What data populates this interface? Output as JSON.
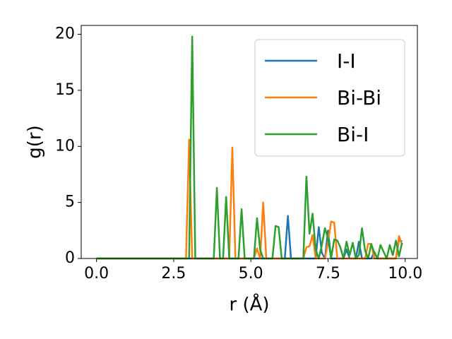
{
  "chart_data": {
    "type": "line",
    "x_label": "r (Å)",
    "y_label": "g(r)",
    "x": [
      0.0,
      0.1,
      0.2,
      0.3,
      0.4,
      0.5,
      0.6,
      0.7,
      0.8,
      0.9,
      1.0,
      1.1,
      1.2,
      1.3,
      1.4,
      1.5,
      1.6,
      1.7,
      1.8,
      1.9,
      2.0,
      2.1,
      2.2,
      2.3,
      2.4,
      2.5,
      2.6,
      2.7,
      2.8,
      2.9,
      3.0,
      3.1,
      3.2,
      3.3,
      3.4,
      3.5,
      3.6,
      3.7,
      3.8,
      3.9,
      4.0,
      4.1,
      4.2,
      4.3,
      4.4,
      4.5,
      4.6,
      4.7,
      4.8,
      4.9,
      5.0,
      5.1,
      5.2,
      5.3,
      5.4,
      5.5,
      5.6,
      5.7,
      5.8,
      5.9,
      6.0,
      6.1,
      6.2,
      6.3,
      6.4,
      6.5,
      6.6,
      6.7,
      6.8,
      6.9,
      7.0,
      7.1,
      7.2,
      7.3,
      7.4,
      7.5,
      7.6,
      7.7,
      7.8,
      7.9,
      8.0,
      8.1,
      8.2,
      8.3,
      8.4,
      8.5,
      8.6,
      8.7,
      8.8,
      8.9,
      9.0,
      9.1,
      9.2,
      9.3,
      9.4,
      9.5,
      9.6,
      9.7,
      9.8,
      9.9
    ],
    "series": [
      {
        "name": "I-I",
        "color": "#1f77b4",
        "values": [
          0,
          0,
          0,
          0,
          0,
          0,
          0,
          0,
          0,
          0,
          0,
          0,
          0,
          0,
          0,
          0,
          0,
          0,
          0,
          0,
          0,
          0,
          0,
          0,
          0,
          0,
          0,
          0,
          0,
          0,
          0,
          0,
          0,
          0,
          0,
          0,
          0,
          0,
          0,
          0,
          0,
          0,
          0,
          0,
          0,
          0,
          0,
          0,
          0,
          0,
          0,
          0,
          0,
          0,
          0,
          0,
          0,
          0,
          0,
          0,
          0,
          0,
          3.8,
          0,
          0,
          0,
          0,
          0,
          0,
          0,
          0,
          0,
          2.8,
          0.5,
          0,
          2.5,
          0,
          0,
          0,
          0,
          0,
          0.8,
          0,
          0,
          0,
          1.5,
          0,
          0,
          0,
          0,
          0.6,
          0,
          0,
          0,
          0,
          0,
          0,
          0,
          1.7,
          1.5
        ]
      },
      {
        "name": "Bi-Bi",
        "color": "#ff7f0e",
        "values": [
          0,
          0,
          0,
          0,
          0,
          0,
          0,
          0,
          0,
          0,
          0,
          0,
          0,
          0,
          0,
          0,
          0,
          0,
          0,
          0,
          0,
          0,
          0,
          0,
          0,
          0,
          0,
          0,
          0,
          0,
          10.6,
          0,
          0,
          0,
          0,
          0,
          0,
          0,
          0,
          0,
          0,
          0,
          0,
          0,
          9.9,
          0,
          0,
          0,
          0,
          0,
          0,
          0,
          0.9,
          0,
          5.0,
          0,
          0,
          0,
          0,
          0,
          0,
          0,
          0,
          0,
          0,
          0,
          0,
          0,
          1.0,
          1.1,
          2.1,
          0,
          0,
          0,
          0,
          1.5,
          3.3,
          3.2,
          0,
          0,
          0,
          0,
          0,
          0,
          0,
          0,
          0,
          0,
          1.3,
          1.3,
          0,
          0,
          0,
          0,
          0,
          0,
          0,
          0,
          2.0,
          1.2
        ]
      },
      {
        "name": "Bi-I",
        "color": "#2ca02c",
        "values": [
          0,
          0,
          0,
          0,
          0,
          0,
          0,
          0,
          0,
          0,
          0,
          0,
          0,
          0,
          0,
          0,
          0,
          0,
          0,
          0,
          0,
          0,
          0,
          0,
          0,
          0,
          0,
          0,
          0,
          0,
          0,
          19.8,
          0,
          0,
          0,
          0,
          0,
          0,
          0,
          6.3,
          0,
          0,
          5.5,
          0,
          0,
          0,
          0,
          4.4,
          0,
          0,
          0,
          0,
          3.6,
          0.8,
          0,
          0,
          0,
          0,
          2.9,
          2.8,
          0,
          0,
          0,
          0,
          0,
          0,
          0,
          0,
          7.3,
          2.2,
          4.0,
          0.8,
          0,
          1.2,
          2.7,
          1.8,
          0,
          1.7,
          1.6,
          1.0,
          0,
          1.5,
          0.3,
          1.4,
          0,
          0.3,
          2.7,
          0.7,
          0,
          1.3,
          0.5,
          0,
          1.2,
          0.6,
          0,
          1.2,
          0.3,
          1.6,
          0.2,
          1.4
        ]
      }
    ],
    "xlim": [
      -0.495,
      10.395
    ],
    "xticks": [
      {
        "value": 0,
        "label": "0.0"
      },
      2.5,
      {
        "value": 5,
        "label": "5.0"
      },
      7.5,
      {
        "value": 10,
        "label": "10.0"
      }
    ],
    "ylim": [
      0,
      20.79
    ],
    "yticks": [
      0,
      5,
      10,
      15,
      20
    ],
    "legend": "upper right"
  }
}
